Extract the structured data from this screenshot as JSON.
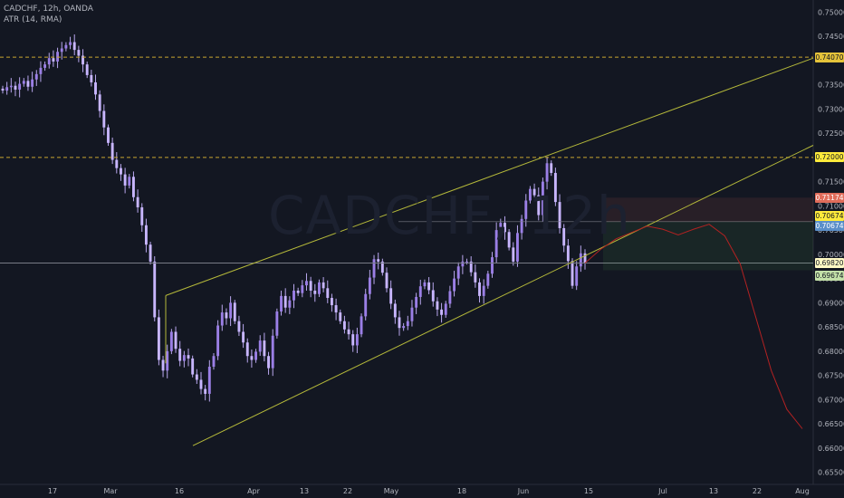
{
  "legend": {
    "symbol": "CADCHF, 12h, OANDA",
    "indicator": "ATR (14, RMA)"
  },
  "watermark": "CADCHF, 12h",
  "colors": {
    "background": "#131722",
    "candle_up": "#9b7fe6",
    "candle_down": "#c8b6ff",
    "wick": "#b9a7ee",
    "channel": "#b5b93a",
    "dashed_level": "#c8a630",
    "projection": "#b22222",
    "axis_text": "#b2b5be"
  },
  "price_axis": {
    "labels": [
      "0.75000",
      "0.74500",
      "0.73500",
      "0.73000",
      "0.72500",
      "0.71500",
      "0.71000",
      "0.70500",
      "0.70000",
      "0.69500",
      "0.69000",
      "0.68500",
      "0.68000",
      "0.67500",
      "0.67000",
      "0.66500",
      "0.66000",
      "0.65500"
    ],
    "ylim": [
      0.6525,
      0.7525
    ]
  },
  "time_axis": {
    "labels": [
      "17",
      "Mar",
      "16",
      "Apr",
      "13",
      "22",
      "May",
      "18",
      "Jun",
      "15",
      "Jul",
      "13",
      "22",
      "Aug"
    ]
  },
  "price_tags": [
    {
      "label": "0.74070",
      "bg": "#e5c33a",
      "fg": "#131722"
    },
    {
      "label": "0.72000",
      "bg": "#ffeb3b",
      "fg": "#131722"
    },
    {
      "label": "0.71174",
      "bg": "#e06c5a",
      "fg": "#ffffff"
    },
    {
      "label": "0.70674",
      "bg": "#ffeb3b",
      "fg": "#131722"
    },
    {
      "label": "0.70674",
      "bg": "#5b8fc9",
      "fg": "#ffffff"
    },
    {
      "label": "0.69820",
      "bg": "#fff9c4",
      "fg": "#131722"
    },
    {
      "label": "0.69674",
      "bg": "#c3e0a8",
      "fg": "#131722"
    }
  ],
  "chart_data": {
    "type": "candlestick",
    "symbol": "CADCHF",
    "timeframe": "12h",
    "ylim": [
      0.6525,
      0.7525
    ],
    "levels": [
      0.7407,
      0.72,
      0.70674,
      0.6982
    ],
    "closes": [
      0.7338,
      0.7345,
      0.7348,
      0.734,
      0.7352,
      0.7358,
      0.7346,
      0.7361,
      0.7372,
      0.7385,
      0.7392,
      0.7405,
      0.7398,
      0.7418,
      0.7425,
      0.7432,
      0.7438,
      0.7422,
      0.741,
      0.7392,
      0.737,
      0.7355,
      0.733,
      0.7296,
      0.7262,
      0.723,
      0.7195,
      0.7178,
      0.7165,
      0.7142,
      0.716,
      0.7118,
      0.7097,
      0.706,
      0.702,
      0.6985,
      0.687,
      0.6782,
      0.676,
      0.68,
      0.684,
      0.6805,
      0.678,
      0.6792,
      0.6785,
      0.6752,
      0.6741,
      0.6722,
      0.6712,
      0.6768,
      0.679,
      0.6853,
      0.688,
      0.6868,
      0.69,
      0.6862,
      0.684,
      0.6818,
      0.679,
      0.6782,
      0.6799,
      0.6822,
      0.679,
      0.6765,
      0.6832,
      0.6882,
      0.6914,
      0.689,
      0.6905,
      0.6925,
      0.692,
      0.6936,
      0.6945,
      0.6925,
      0.6918,
      0.6942,
      0.693,
      0.691,
      0.6895,
      0.688,
      0.6862,
      0.6845,
      0.6835,
      0.6812,
      0.6835,
      0.6872,
      0.6918,
      0.6952,
      0.699,
      0.6985,
      0.6962,
      0.693,
      0.6898,
      0.687,
      0.6848,
      0.6852,
      0.6862,
      0.689,
      0.6912,
      0.6934,
      0.6942,
      0.6926,
      0.6903,
      0.6886,
      0.6875,
      0.6898,
      0.6924,
      0.695,
      0.6975,
      0.6985,
      0.6985,
      0.6963,
      0.6942,
      0.6914,
      0.6935,
      0.696,
      0.6994,
      0.705,
      0.7065,
      0.7046,
      0.7014,
      0.6985,
      0.7044,
      0.7073,
      0.7111,
      0.7135,
      0.7122,
      0.7081,
      0.715,
      0.7188,
      0.7168,
      0.7108,
      0.7054,
      0.7018,
      0.6986,
      0.6935,
      0.6975,
      0.7002,
      0.6982
    ],
    "projection": [
      0.6982,
      0.701,
      0.7032,
      0.7045,
      0.7058,
      0.7052,
      0.704,
      0.7052,
      0.7062,
      0.7038,
      0.698,
      0.687,
      0.676,
      0.668,
      0.664
    ]
  }
}
